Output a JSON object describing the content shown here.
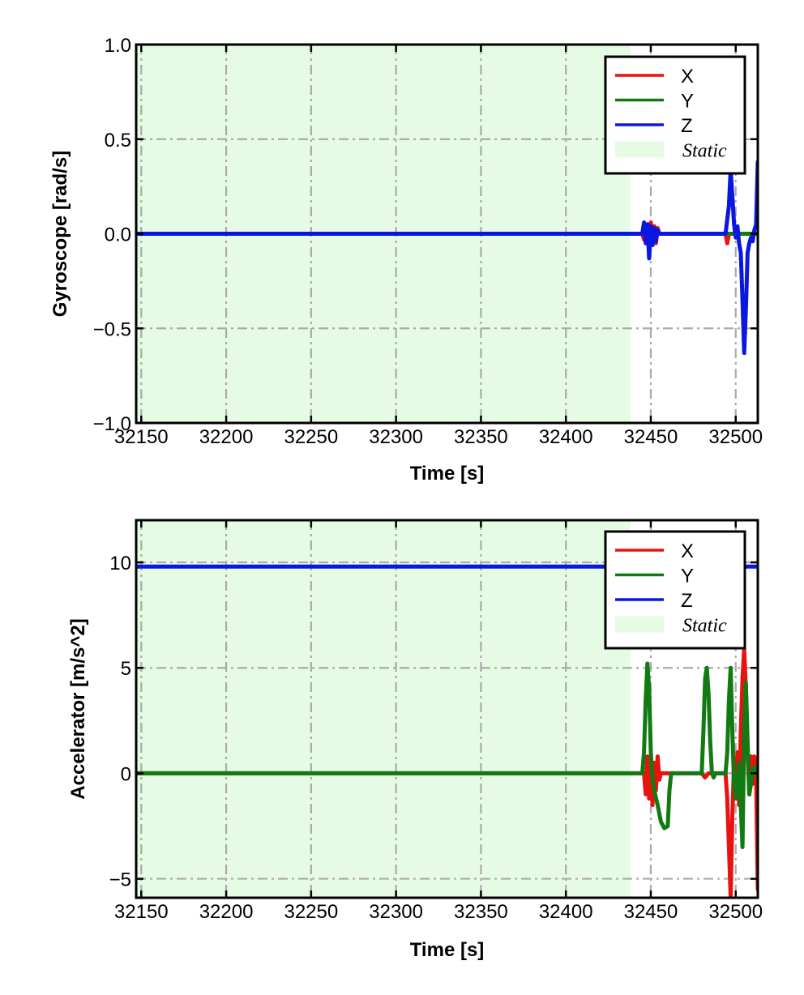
{
  "chart_data": [
    {
      "type": "line",
      "xlabel": "Time [s]",
      "ylabel": "Gyroscope [rad/s]",
      "xlim": [
        32147,
        32513
      ],
      "ylim": [
        -1.0,
        1.0
      ],
      "xticks": [
        32150,
        32200,
        32250,
        32300,
        32350,
        32400,
        32450,
        32500
      ],
      "xtick_labels": [
        "32150",
        "32200",
        "32250",
        "32300",
        "32350",
        "32400",
        "32450",
        "32500"
      ],
      "yticks": [
        -1.0,
        -0.5,
        0.0,
        0.5,
        1.0
      ],
      "ytick_labels": [
        "−1.0",
        "−0.5",
        "0.0",
        "0.5",
        "1.0"
      ],
      "grid": true,
      "legend_position": "top-right",
      "static_region": {
        "label": "Static",
        "x_start": 32147,
        "x_end": 32438,
        "color": "#e6fbe4"
      },
      "series": [
        {
          "name": "X",
          "color": "#e8120f",
          "x": [
            32147,
            32445,
            32446,
            32447,
            32448,
            32449,
            32450,
            32451,
            32452,
            32453,
            32454,
            32455,
            32494,
            32495,
            32496,
            32500,
            32505,
            32510,
            32513
          ],
          "y": [
            0.0,
            0.0,
            -0.03,
            0.05,
            0.0,
            -0.04,
            0.06,
            -0.02,
            0.04,
            -0.05,
            0.03,
            0.0,
            0.0,
            -0.05,
            0.0,
            0.0,
            0.0,
            0.0,
            0.0
          ]
        },
        {
          "name": "Y",
          "color": "#127a12",
          "x": [
            32147,
            32446,
            32447,
            32448,
            32449,
            32450,
            32451,
            32452,
            32513
          ],
          "y": [
            0.0,
            0.0,
            0.02,
            -0.02,
            0.03,
            -0.01,
            0.02,
            0.0,
            0.0
          ]
        },
        {
          "name": "Z",
          "color": "#0a17e0",
          "x": [
            32147,
            32445,
            32446,
            32447,
            32448,
            32449,
            32450,
            32451,
            32452,
            32453,
            32454,
            32455,
            32494,
            32496,
            32497,
            32498,
            32499,
            32500,
            32501,
            32502,
            32503,
            32504,
            32505,
            32506,
            32507,
            32508,
            32509,
            32510,
            32511,
            32512,
            32513
          ],
          "y": [
            0.0,
            0.0,
            0.06,
            -0.05,
            0.05,
            -0.13,
            0.04,
            -0.06,
            0.03,
            -0.04,
            0.02,
            0.0,
            0.0,
            0.15,
            0.34,
            0.2,
            0.05,
            -0.02,
            0.04,
            -0.05,
            -0.1,
            -0.35,
            -0.63,
            -0.4,
            -0.1,
            -0.05,
            -0.02,
            -0.04,
            0.02,
            0.05,
            0.38
          ]
        }
      ]
    },
    {
      "type": "line",
      "xlabel": "Time [s]",
      "ylabel": "Accelerator [m/s^2]",
      "xlim": [
        32147,
        32513
      ],
      "ylim": [
        -5.9,
        12.0
      ],
      "xticks": [
        32150,
        32200,
        32250,
        32300,
        32350,
        32400,
        32450,
        32500
      ],
      "xtick_labels": [
        "32150",
        "32200",
        "32250",
        "32300",
        "32350",
        "32400",
        "32450",
        "32500"
      ],
      "yticks": [
        -5,
        0,
        5,
        10
      ],
      "ytick_labels": [
        "−5",
        "0",
        "5",
        "10"
      ],
      "grid": true,
      "legend_position": "top-right",
      "static_region": {
        "label": "Static",
        "x_start": 32147,
        "x_end": 32438,
        "color": "#e6fbe4"
      },
      "series": [
        {
          "name": "X",
          "color": "#e8120f",
          "x": [
            32147,
            32446,
            32447,
            32448,
            32449,
            32450,
            32451,
            32452,
            32453,
            32454,
            32455,
            32456,
            32480,
            32482,
            32484,
            32494,
            32495,
            32496,
            32497,
            32498,
            32499,
            32500,
            32501,
            32502,
            32503,
            32504,
            32505,
            32506,
            32507,
            32508,
            32509,
            32510,
            32511,
            32512,
            32513
          ],
          "y": [
            0.0,
            0.0,
            -1.0,
            0.8,
            -1.2,
            0.6,
            -1.5,
            0.5,
            -0.8,
            0.8,
            -0.3,
            0.0,
            0.0,
            -0.2,
            0.0,
            0.0,
            -1.2,
            -3.5,
            -5.9,
            -2.0,
            0.5,
            -0.5,
            1.0,
            -1.5,
            2.0,
            4.5,
            5.9,
            4.0,
            1.0,
            -1.0,
            0.8,
            -0.5,
            0.8,
            0.0,
            -5.5
          ]
        },
        {
          "name": "Y",
          "color": "#127a12",
          "x": [
            32147,
            32445,
            32446,
            32447,
            32448,
            32449,
            32450,
            32451,
            32452,
            32454,
            32456,
            32458,
            32460,
            32461,
            32462,
            32464,
            32480,
            32481,
            32482,
            32483,
            32484,
            32485,
            32486,
            32487,
            32488,
            32490,
            32492,
            32494,
            32495,
            32496,
            32497,
            32498,
            32499,
            32500,
            32501,
            32502,
            32503,
            32504,
            32505,
            32506,
            32507,
            32508,
            32509,
            32510,
            32511,
            32512,
            32513
          ],
          "y": [
            0.0,
            0.0,
            1.0,
            3.5,
            5.2,
            4.0,
            1.0,
            -0.3,
            -0.8,
            -1.5,
            -2.3,
            -2.6,
            -2.5,
            -0.8,
            0.0,
            0.0,
            0.0,
            2.0,
            4.5,
            5.0,
            3.8,
            1.5,
            0.0,
            -0.2,
            0.0,
            0.0,
            0.0,
            0.0,
            1.0,
            3.5,
            5.0,
            2.0,
            -0.5,
            -1.2,
            -0.5,
            0.5,
            -1.5,
            -3.5,
            2.0,
            4.3,
            1.5,
            -1.0,
            -0.5,
            0.0,
            0.3,
            0.0,
            0.0
          ]
        },
        {
          "name": "Z",
          "color": "#0a17e0",
          "x": [
            32147,
            32513
          ],
          "y": [
            9.8,
            9.8
          ]
        }
      ]
    }
  ]
}
